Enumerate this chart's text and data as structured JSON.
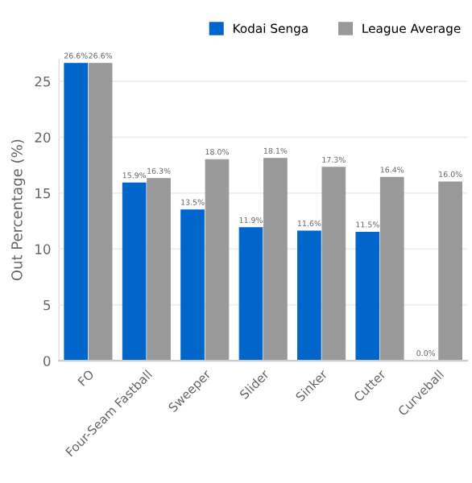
{
  "chart_data": {
    "type": "bar",
    "ylabel": "Out Percentage (%)",
    "categories": [
      "FO",
      "Four-Seam Fastball",
      "Sweeper",
      "Slider",
      "Sinker",
      "Cutter",
      "Curveball"
    ],
    "series": [
      {
        "name": "Kodai Senga",
        "color": "#0066cc",
        "values": [
          26.6,
          15.9,
          13.5,
          11.9,
          11.6,
          11.5,
          0.0
        ],
        "value_labels": [
          "26.6%",
          "15.9%",
          "13.5%",
          "11.9%",
          "11.6%",
          "11.5%",
          "0.0%"
        ]
      },
      {
        "name": "League Average",
        "color": "#999999",
        "values": [
          26.6,
          16.3,
          18.0,
          18.1,
          17.3,
          16.4,
          16.0
        ],
        "value_labels": [
          "26.6%",
          "16.3%",
          "18.0%",
          "18.1%",
          "17.3%",
          "16.4%",
          "16.0%"
        ]
      }
    ],
    "ylim": [
      0,
      27
    ],
    "yticks": [
      0,
      5,
      10,
      15,
      20,
      25
    ],
    "grid": "y",
    "legend": "top right"
  }
}
